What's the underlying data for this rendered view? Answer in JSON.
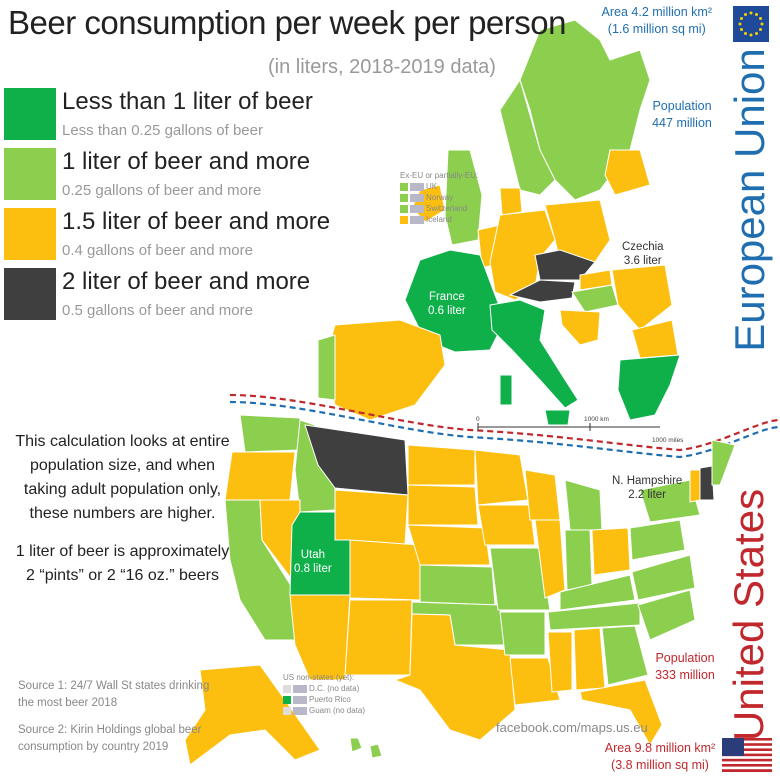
{
  "title": "Beer consumption per week per person",
  "subtitle": "(in liters, 2018-2019 data)",
  "colors": {
    "lt1": "#0fb04a",
    "ge1": "#8ccf4e",
    "ge15": "#fdbf0f",
    "ge2": "#3f3f3f",
    "eu_blue": "#1f6fb0",
    "us_red": "#c0282d"
  },
  "legend": [
    {
      "main": "Less than 1 liter of beer",
      "sub": "Less than 0.25 gallons of beer",
      "color": "#0fb04a"
    },
    {
      "main": "1 liter of beer and more",
      "sub": "0.25 gallons of beer and more",
      "color": "#8ccf4e"
    },
    {
      "main": "1.5 liter of beer and more",
      "sub": "0.4 gallons of beer and more",
      "color": "#fdbf0f"
    },
    {
      "main": "2 liter of beer and more",
      "sub": "0.5 gallons of beer and more",
      "color": "#3f3f3f"
    }
  ],
  "note": {
    "line1": "This calculation looks at entire",
    "line2": "population size, and when",
    "line3": "taking adult population only,",
    "line4": "these numbers are higher.",
    "line5": "1 liter of beer is approximately",
    "line6": "2 “pints” or 2 “16 oz.” beers"
  },
  "sources": {
    "s1": "Source 1: 24/7 Wall St states drinking the most beer 2018",
    "s2": "Source 2: Kirin Holdings global beer consumption by country 2019"
  },
  "facebook": "facebook.com/maps.us.eu",
  "eu": {
    "area_line1": "Area 4.2 million km²",
    "area_line2": "(1.6 million sq mi)",
    "pop_line1": "Population",
    "pop_line2": "447 million",
    "name": "European Union"
  },
  "us": {
    "pop_line1": "Population",
    "pop_line2": "333 million",
    "area_line1": "Area 9.8 million km²",
    "area_line2": "(3.8 million sq mi)",
    "name": "United States"
  },
  "map_labels": {
    "czechia_name": "Czechia",
    "czechia_val": "3.6 liter",
    "france_name": "France",
    "france_val": "0.6 liter",
    "nh_name": "N. Hampshire",
    "nh_val": "2.2 liter",
    "utah_name": "Utah",
    "utah_val": "0.8 liter"
  },
  "ex_eu": {
    "heading": "Ex-EU or partially-EU:",
    "items": [
      "UK",
      "Norway",
      "Switzerland",
      "Iceland"
    ]
  },
  "us_nonstates": {
    "heading": "US non-states (yet):",
    "items": [
      "D.C. (no data)",
      "Puerto Rico",
      "Guam (no data)"
    ]
  },
  "scale": {
    "zero": "0",
    "km": "1000 km",
    "miles": "1000 miles"
  }
}
